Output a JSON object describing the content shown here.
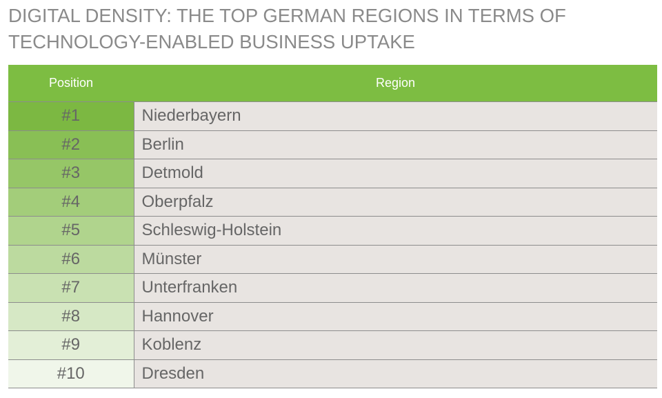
{
  "header": {
    "title": [
      "DIGITAL DENSITY: THE TOP GERMAN REGIONS IN TERMS OF",
      "TECHNOLOGY-ENABLED BUSINESS UPTAKE"
    ]
  },
  "table": {
    "columns": [
      "Position",
      "Region"
    ],
    "rows": [
      [
        "#1",
        "Niederbayern"
      ],
      [
        "#2",
        "Berlin"
      ],
      [
        "#3",
        "Detmold"
      ],
      [
        "#4",
        "Oberpfalz"
      ],
      [
        "#5",
        "Schleswig-Holstein"
      ],
      [
        "#6",
        "Münster"
      ],
      [
        "#7",
        "Unterfranken"
      ],
      [
        "#8",
        "Hannover"
      ],
      [
        "#9",
        "Koblenz"
      ],
      [
        "#10",
        "Dresden"
      ]
    ]
  }
}
